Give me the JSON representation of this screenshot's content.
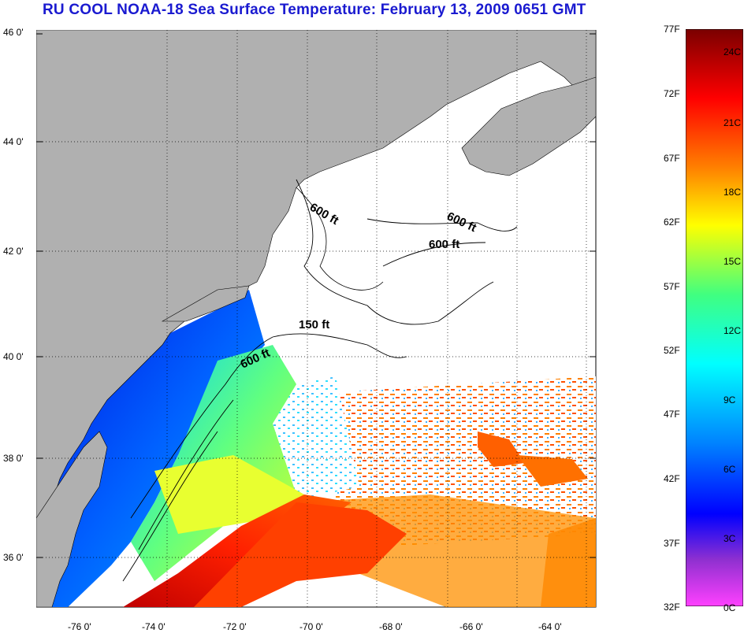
{
  "title": "RU COOL  NOAA-18  Sea Surface Temperature:  February 13, 2009 0651 GMT",
  "map": {
    "lat_labels": [
      "46 0'",
      "44 0'",
      "42 0'",
      "40 0'",
      "38 0'",
      "36 0'"
    ],
    "lon_labels": [
      "-76 0'",
      "-74 0'",
      "-72 0'",
      "-70 0'",
      "-68 0'",
      "-66 0'",
      "-64 0'"
    ],
    "contour_labels": [
      "600 ft",
      "600 ft",
      "600 ft",
      "150 ft",
      "600 ft"
    ],
    "land_color": "#b0b0b0",
    "no_data_color": "#ffffff"
  },
  "colorbar": {
    "fahrenheit_labels": [
      "77F",
      "72F",
      "67F",
      "62F",
      "57F",
      "52F",
      "47F",
      "42F",
      "37F",
      "32F"
    ],
    "celsius_labels": [
      "24C",
      "21C",
      "18C",
      "15C",
      "12C",
      "9C",
      "6C",
      "3C",
      "0C"
    ],
    "colors": [
      "#7a0000",
      "#ff0000",
      "#ff8000",
      "#ffff00",
      "#00ff80",
      "#00ffff",
      "#0080ff",
      "#0000ff",
      "#8000c0",
      "#ff40ff"
    ]
  }
}
